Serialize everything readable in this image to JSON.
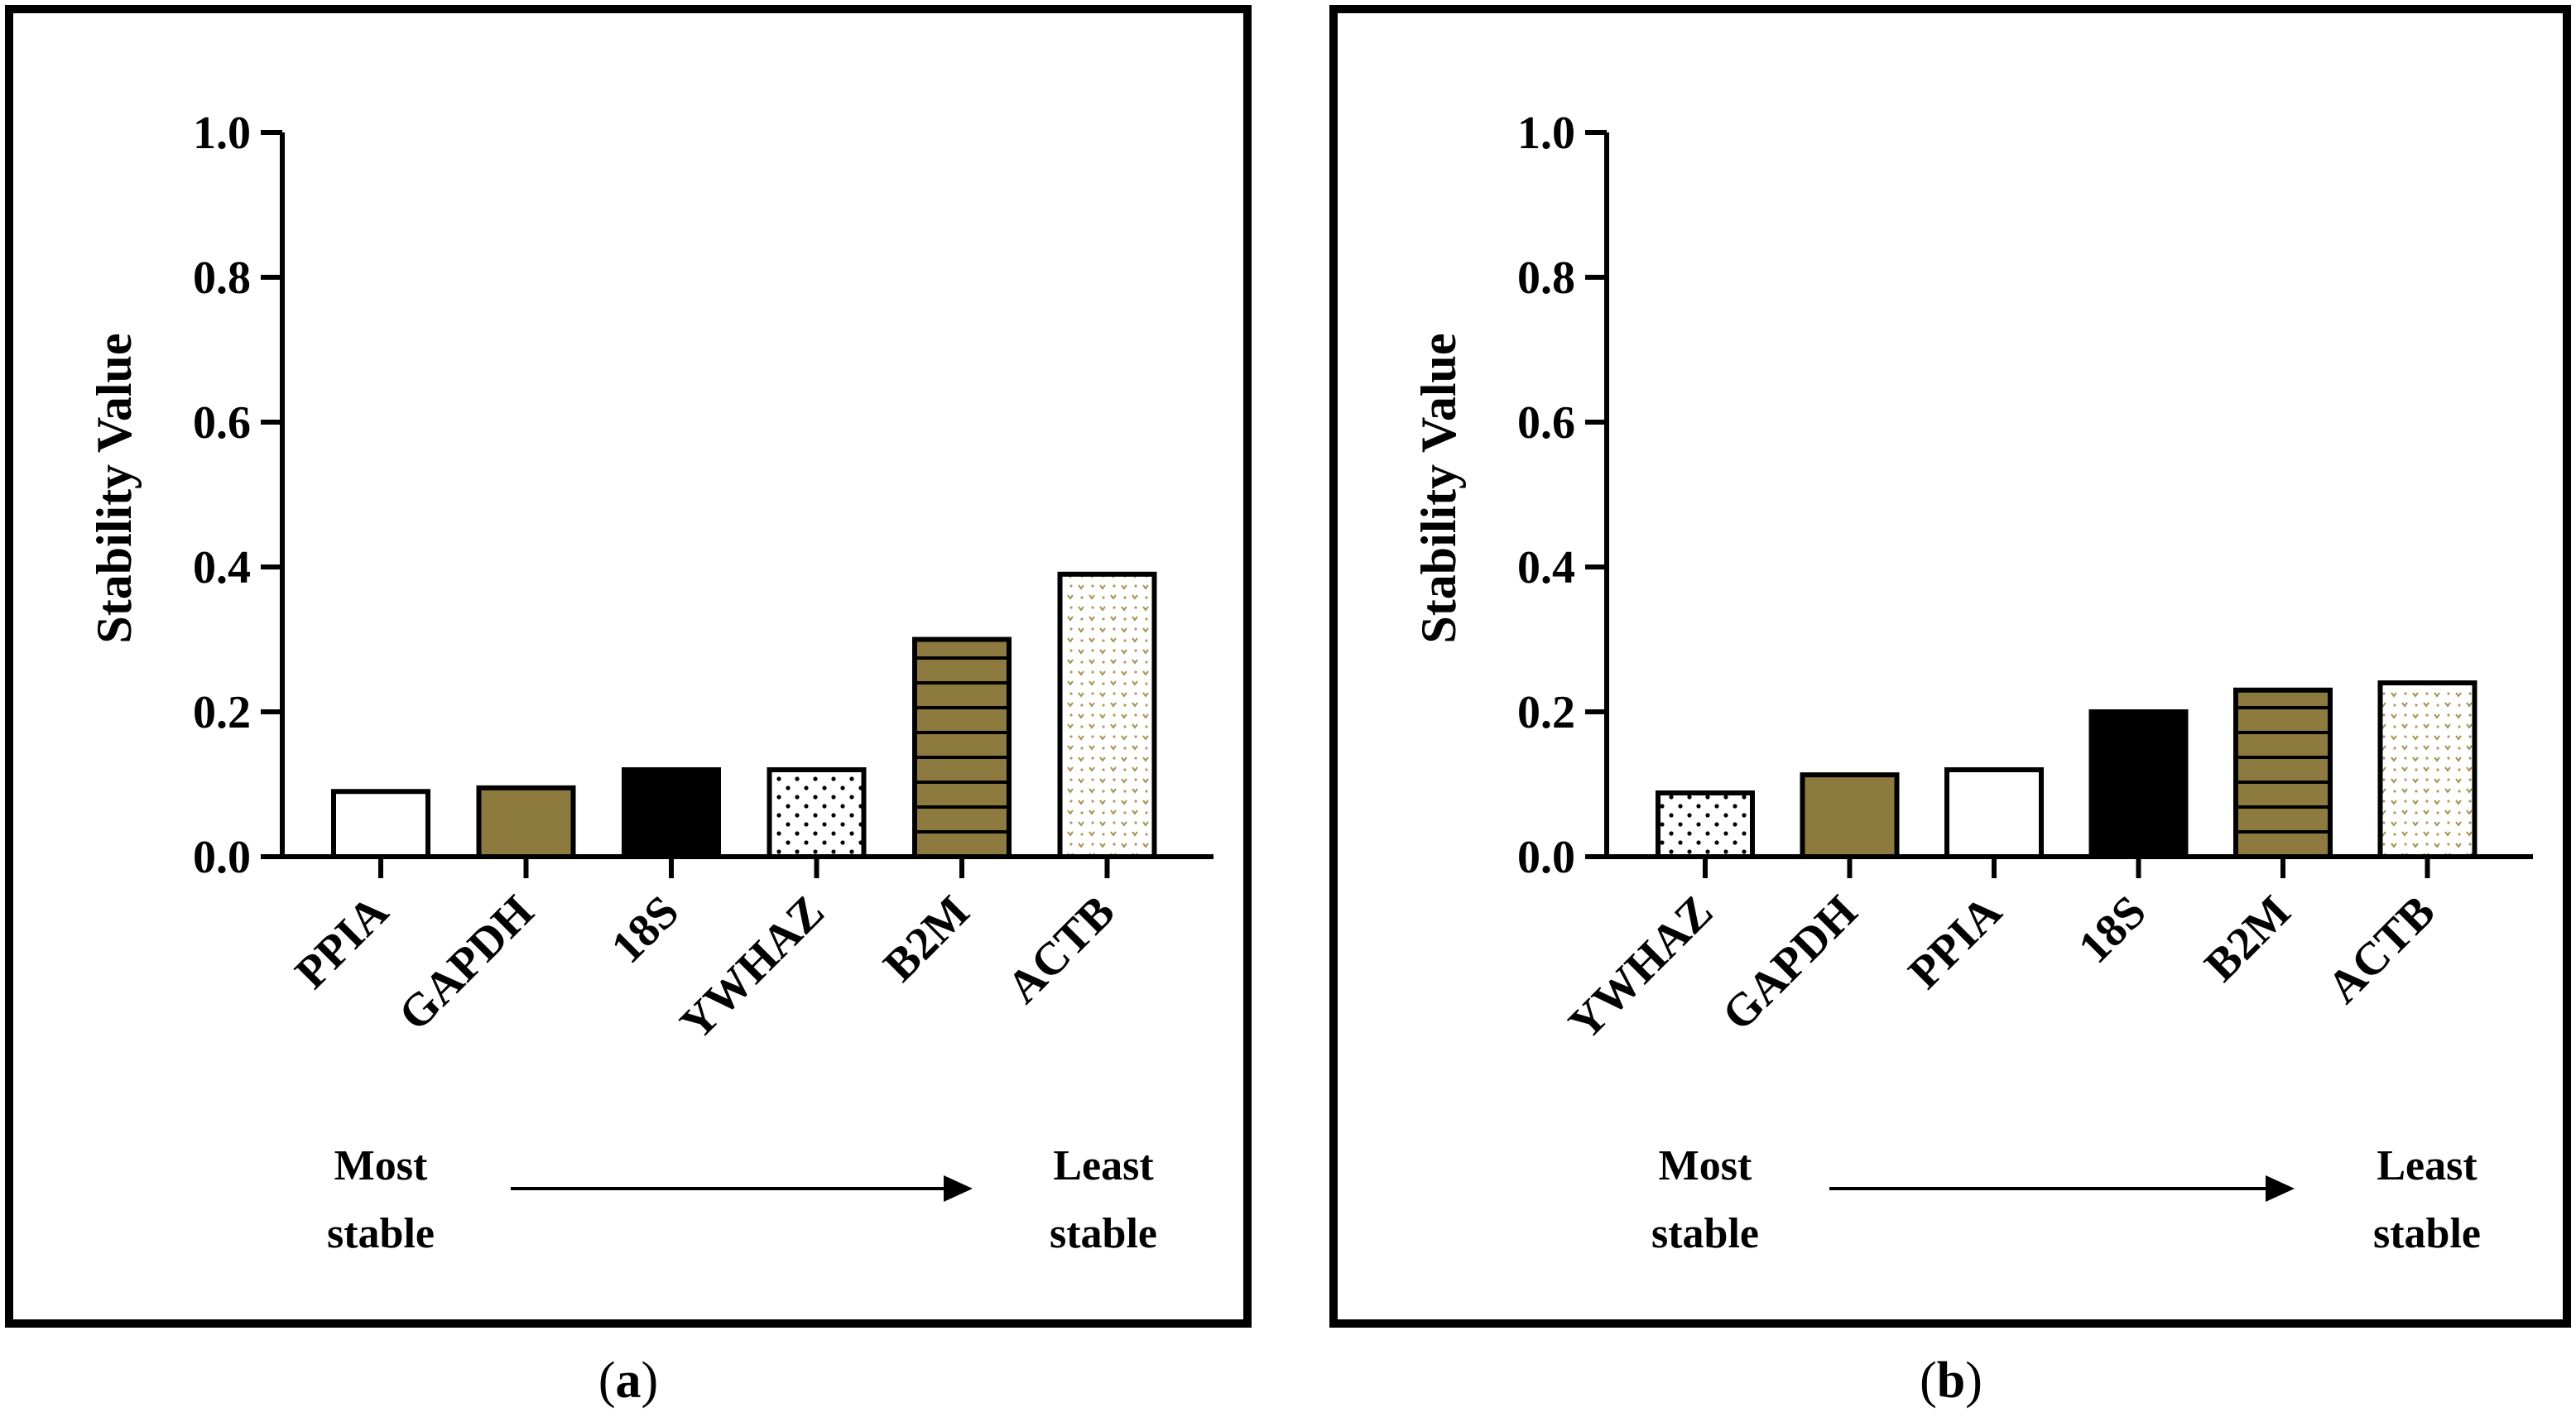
{
  "chart_data": [
    {
      "type": "bar",
      "panel": "a",
      "caption_open": "(",
      "caption_letter": "a",
      "caption_close": ")",
      "ylabel": "Stability Value",
      "ylim": [
        0,
        1.0
      ],
      "yticks": [
        "0.0",
        "0.2",
        "0.4",
        "0.6",
        "0.8",
        "1.0"
      ],
      "categories": [
        "PPIA",
        "GAPDH",
        "18S",
        "YWHAZ",
        "B2M",
        "ACTB"
      ],
      "values": [
        0.09,
        0.095,
        0.12,
        0.12,
        0.3,
        0.39
      ],
      "patterns": [
        "white",
        "olive",
        "black",
        "dots",
        "stripes",
        "speckle"
      ],
      "most_label": [
        "Most",
        "stable"
      ],
      "least_label": [
        "Least",
        "stable"
      ]
    },
    {
      "type": "bar",
      "panel": "b",
      "caption_open": "(",
      "caption_letter": "b",
      "caption_close": ")",
      "ylabel": "Stability Value",
      "ylim": [
        0,
        1.0
      ],
      "yticks": [
        "0.0",
        "0.2",
        "0.4",
        "0.6",
        "0.8",
        "1.0"
      ],
      "categories": [
        "YWHAZ",
        "GAPDH",
        "PPIA",
        "18S",
        "B2M",
        "ACTB"
      ],
      "values": [
        0.088,
        0.113,
        0.12,
        0.2,
        0.23,
        0.24
      ],
      "patterns": [
        "dots",
        "olive",
        "white",
        "black",
        "stripes",
        "speckle"
      ],
      "most_label": [
        "Most",
        "stable"
      ],
      "least_label": [
        "Least",
        "stable"
      ]
    }
  ],
  "colors": {
    "olive": "#8C7A3E",
    "black": "#000000",
    "white": "#ffffff",
    "speckle": "#C9B47A",
    "frame": "#000000"
  }
}
